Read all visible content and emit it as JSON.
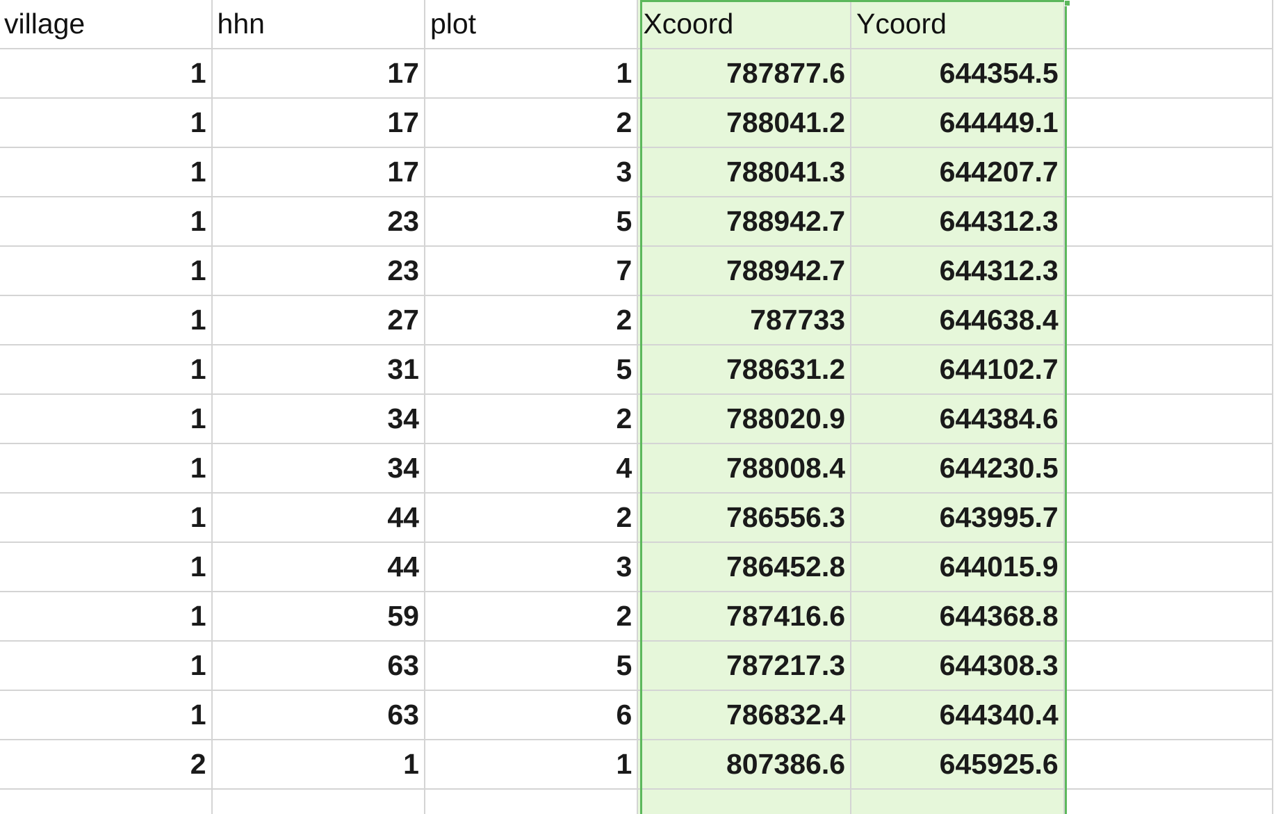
{
  "sheet": {
    "headers": [
      "village",
      "hhn",
      "plot",
      "Xcoord",
      "Ycoord"
    ],
    "rows": [
      [
        "1",
        "17",
        "1",
        "787877.6",
        "644354.5"
      ],
      [
        "1",
        "17",
        "2",
        "788041.2",
        "644449.1"
      ],
      [
        "1",
        "17",
        "3",
        "788041.3",
        "644207.7"
      ],
      [
        "1",
        "23",
        "5",
        "788942.7",
        "644312.3"
      ],
      [
        "1",
        "23",
        "7",
        "788942.7",
        "644312.3"
      ],
      [
        "1",
        "27",
        "2",
        "787733",
        "644638.4"
      ],
      [
        "1",
        "31",
        "5",
        "788631.2",
        "644102.7"
      ],
      [
        "1",
        "34",
        "2",
        "788020.9",
        "644384.6"
      ],
      [
        "1",
        "34",
        "4",
        "788008.4",
        "644230.5"
      ],
      [
        "1",
        "44",
        "2",
        "786556.3",
        "643995.7"
      ],
      [
        "1",
        "44",
        "3",
        "786452.8",
        "644015.9"
      ],
      [
        "1",
        "59",
        "2",
        "787416.6",
        "644368.8"
      ],
      [
        "1",
        "63",
        "5",
        "787217.3",
        "644308.3"
      ],
      [
        "1",
        "63",
        "6",
        "786832.4",
        "644340.4"
      ],
      [
        "2",
        "1",
        "1",
        "807386.6",
        "645925.6"
      ]
    ],
    "selected_columns": [
      "Xcoord",
      "Ycoord"
    ],
    "selection_color": "#5cb85c",
    "selection_fill": "#e6f7da"
  }
}
